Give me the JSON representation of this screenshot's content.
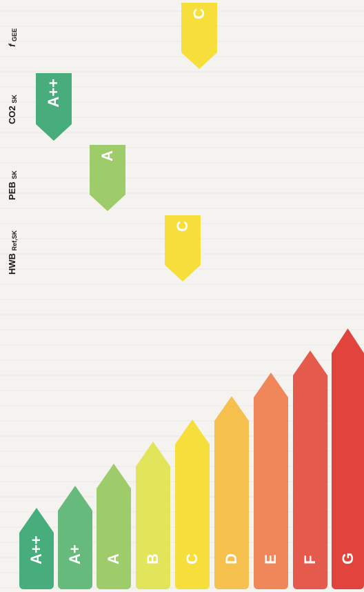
{
  "scale": {
    "levels": [
      {
        "label": "A++",
        "color": "#47ad7c"
      },
      {
        "label": "A+",
        "color": "#66bb7c"
      },
      {
        "label": "A",
        "color": "#9fcc6a"
      },
      {
        "label": "B",
        "color": "#e2e45a"
      },
      {
        "label": "C",
        "color": "#f6df3a"
      },
      {
        "label": "D",
        "color": "#f6c04e"
      },
      {
        "label": "E",
        "color": "#f0875a"
      },
      {
        "label": "F",
        "color": "#e45a4c"
      },
      {
        "label": "G",
        "color": "#e0443c"
      }
    ]
  },
  "indicators": [
    {
      "key": "hwb",
      "name": "HWB",
      "sub": "Ref,SK",
      "rating": "C",
      "color": "#f6df3a"
    },
    {
      "key": "peb",
      "name": "PEB",
      "sub": "SK",
      "rating": "A",
      "color": "#9fcc6a"
    },
    {
      "key": "co2",
      "name": "CO2",
      "sub": "SK",
      "rating": "A++",
      "color": "#47ad7c"
    },
    {
      "key": "fgee",
      "name": "f",
      "sub": "GEE",
      "rating": "C",
      "color": "#f6df3a"
    }
  ]
}
